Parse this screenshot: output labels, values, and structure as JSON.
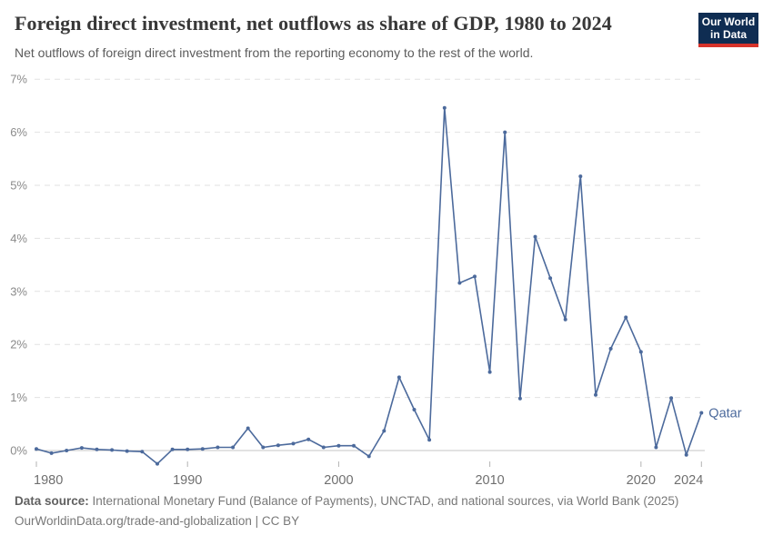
{
  "header": {
    "title": "Foreign direct investment, net outflows as share of GDP, 1980 to 2024",
    "subtitle": "Net outflows of foreign direct investment from the reporting economy to the rest of the world.",
    "logo": {
      "line1": "Our World",
      "line2": "in Data",
      "bg_color": "#0f2d52",
      "accent_color": "#d6332b"
    }
  },
  "chart_data": {
    "type": "line",
    "title": "Foreign direct investment, net outflows as share of GDP, 1980 to 2024",
    "xlabel": "",
    "ylabel": "",
    "xlim": [
      1980,
      2024
    ],
    "ylim": [
      -0.3,
      7
    ],
    "x_ticks": [
      1980,
      1990,
      2000,
      2010,
      2020,
      2024
    ],
    "y_ticks": [
      0,
      1,
      2,
      3,
      4,
      5,
      6,
      7
    ],
    "y_tick_suffix": "%",
    "grid": "horizontal-dashed",
    "legend_position": "end-of-line-label",
    "line_color": "#4c6a9c",
    "grid_color": "#e2e2e2",
    "zero_line_color": "#c6c6c6",
    "tick_label_color": "#8b8b8b",
    "x_label_color": "#6f6f6f",
    "series": [
      {
        "name": "Qatar",
        "color": "#4c6a9c",
        "x": [
          1980,
          1981,
          1982,
          1983,
          1984,
          1985,
          1986,
          1987,
          1988,
          1989,
          1990,
          1991,
          1992,
          1993,
          1994,
          1995,
          1996,
          1997,
          1998,
          1999,
          2000,
          2001,
          2002,
          2003,
          2004,
          2005,
          2006,
          2007,
          2008,
          2009,
          2010,
          2011,
          2012,
          2013,
          2014,
          2015,
          2016,
          2017,
          2018,
          2019,
          2020,
          2021,
          2022,
          2023,
          2024
        ],
        "values": [
          0.03,
          -0.05,
          0.0,
          0.05,
          0.02,
          0.01,
          -0.01,
          -0.02,
          -0.25,
          0.02,
          0.02,
          0.03,
          0.06,
          0.06,
          0.42,
          0.06,
          0.1,
          0.13,
          0.21,
          0.06,
          0.09,
          0.09,
          -0.11,
          0.37,
          1.38,
          0.77,
          0.2,
          6.46,
          3.16,
          3.28,
          1.48,
          6.0,
          0.98,
          4.03,
          3.25,
          2.47,
          5.17,
          1.05,
          1.92,
          2.51,
          1.86,
          0.06,
          0.99,
          -0.08,
          0.71
        ]
      }
    ],
    "end_label": "Qatar"
  },
  "footer": {
    "datasource_label": "Data source:",
    "datasource_text": " International Monetary Fund (Balance of Payments), UNCTAD, and national sources, via World Bank (2025)",
    "link_text": "OurWorldinData.org/trade-and-globalization | CC BY"
  }
}
